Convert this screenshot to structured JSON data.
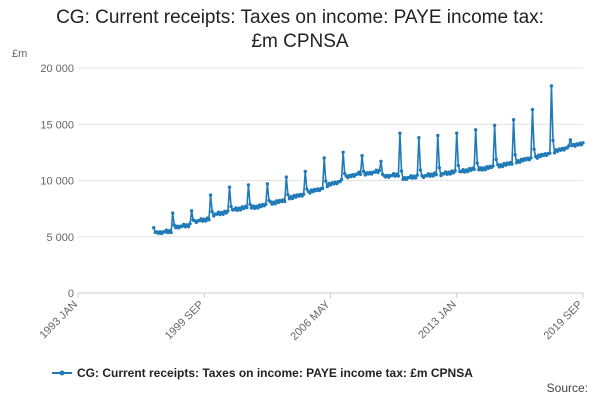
{
  "chart_data": {
    "type": "line",
    "title_lines": [
      "CG: Current receipts: Taxes on income: PAYE income tax:",
      "£m CPNSA"
    ],
    "y_unit_label": "£m",
    "ylim": [
      0,
      20000
    ],
    "y_ticks": [
      {
        "value": 0,
        "label": "0"
      },
      {
        "value": 5000,
        "label": "5 000"
      },
      {
        "value": 10000,
        "label": "10 000"
      },
      {
        "value": 15000,
        "label": "15 000"
      },
      {
        "value": 20000,
        "label": "20 000"
      }
    ],
    "x_range": [
      "1993-01",
      "2019-09"
    ],
    "x_ticks": [
      {
        "date": "1993-01",
        "label": "1993 JAN"
      },
      {
        "date": "1999-09",
        "label": "1999 SEP"
      },
      {
        "date": "2006-05",
        "label": "2006 MAY"
      },
      {
        "date": "2013-01",
        "label": "2013 JAN"
      },
      {
        "date": "2019-09",
        "label": "2019 SEP"
      }
    ],
    "grid": "horizontal",
    "legend_position": "bottom",
    "series_color": "#1f7ab8",
    "series": [
      {
        "name": "CG: Current receipts: Taxes on income: PAYE income tax: £m CPNSA",
        "start_date": "1997-01",
        "frequency": "monthly",
        "annual": [
          {
            "year": 1997,
            "base": 5300,
            "step": 18,
            "peak": 5800
          },
          {
            "year": 1998,
            "base": 5800,
            "step": 22,
            "peak": 7100
          },
          {
            "year": 1999,
            "base": 6300,
            "step": 25,
            "peak": 7300
          },
          {
            "year": 2000,
            "base": 6900,
            "step": 28,
            "peak": 8700
          },
          {
            "year": 2001,
            "base": 7300,
            "step": 30,
            "peak": 9400
          },
          {
            "year": 2002,
            "base": 7500,
            "step": 30,
            "peak": 9600
          },
          {
            "year": 2003,
            "base": 7900,
            "step": 30,
            "peak": 9700
          },
          {
            "year": 2004,
            "base": 8400,
            "step": 32,
            "peak": 10300
          },
          {
            "year": 2005,
            "base": 8900,
            "step": 35,
            "peak": 10800
          },
          {
            "year": 2006,
            "base": 9500,
            "step": 40,
            "peak": 12000
          },
          {
            "year": 2007,
            "base": 10200,
            "step": 40,
            "peak": 12500
          },
          {
            "year": 2008,
            "base": 10500,
            "step": 30,
            "peak": 12200
          },
          {
            "year": 2009,
            "base": 10300,
            "step": 20,
            "peak": 11700
          },
          {
            "year": 2010,
            "base": 10100,
            "step": 25,
            "peak": 14200
          },
          {
            "year": 2011,
            "base": 10300,
            "step": 25,
            "peak": 13800
          },
          {
            "year": 2012,
            "base": 10500,
            "step": 25,
            "peak": 14000
          },
          {
            "year": 2013,
            "base": 10700,
            "step": 30,
            "peak": 14200
          },
          {
            "year": 2014,
            "base": 10900,
            "step": 30,
            "peak": 14500
          },
          {
            "year": 2015,
            "base": 11200,
            "step": 32,
            "peak": 14900
          },
          {
            "year": 2016,
            "base": 11600,
            "step": 35,
            "peak": 15400
          },
          {
            "year": 2017,
            "base": 12000,
            "step": 38,
            "peak": 16300
          },
          {
            "year": 2018,
            "base": 12500,
            "step": 40,
            "peak": 18400
          },
          {
            "year": 2019,
            "base": 13000,
            "step": 40,
            "peak": 13600
          }
        ]
      }
    ]
  },
  "footer": {
    "source_label": "Source:"
  }
}
